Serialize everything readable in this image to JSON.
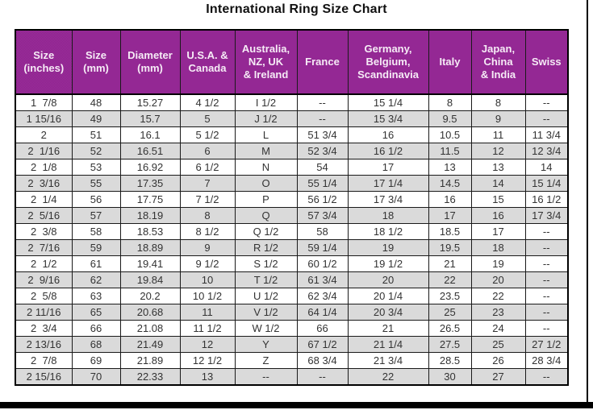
{
  "page": {
    "title": "International Ring Size Chart"
  },
  "colors": {
    "header_bg": "#8e1d8e",
    "header_text": "#f6ebf6",
    "row_alt_bg": "#d2d2d2",
    "text": "#333333",
    "border": "#000000"
  },
  "chart_data": {
    "type": "table",
    "title": "International Ring Size Chart",
    "columns": [
      "Size\n(inches)",
      "Size\n(mm)",
      "Diameter\n(mm)",
      "U.S.A. &\nCanada",
      "Australia,\nNZ, UK\n& Ireland",
      "France",
      "Germany,\nBelgium,\nScandinavia",
      "Italy",
      "Japan,\nChina\n& India",
      "Swiss"
    ],
    "rows": [
      [
        "1  7/8",
        "48",
        "15.27",
        "4 1/2",
        "I 1/2",
        "--",
        "15 1/4",
        "8",
        "8",
        "--"
      ],
      [
        "1 15/16",
        "49",
        "15.7",
        "5",
        "J 1/2",
        "--",
        "15 3/4",
        "9.5",
        "9",
        "--"
      ],
      [
        "2",
        "51",
        "16.1",
        "5 1/2",
        "L",
        "51 3/4",
        "16",
        "10.5",
        "11",
        "11 3/4"
      ],
      [
        "2  1/16",
        "52",
        "16.51",
        "6",
        "M",
        "52 3/4",
        "16 1/2",
        "11.5",
        "12",
        "12 3/4"
      ],
      [
        "2  1/8",
        "53",
        "16.92",
        "6 1/2",
        "N",
        "54",
        "17",
        "13",
        "13",
        "14"
      ],
      [
        "2  3/16",
        "55",
        "17.35",
        "7",
        "O",
        "55 1/4",
        "17 1/4",
        "14.5",
        "14",
        "15 1/4"
      ],
      [
        "2  1/4",
        "56",
        "17.75",
        "7 1/2",
        "P",
        "56 1/2",
        "17 3/4",
        "16",
        "15",
        "16 1/2"
      ],
      [
        "2  5/16",
        "57",
        "18.19",
        "8",
        "Q",
        "57 3/4",
        "18",
        "17",
        "16",
        "17 3/4"
      ],
      [
        "2  3/8",
        "58",
        "18.53",
        "8 1/2",
        "Q 1/2",
        "58",
        "18 1/2",
        "18.5",
        "17",
        "--"
      ],
      [
        "2  7/16",
        "59",
        "18.89",
        "9",
        "R 1/2",
        "59 1/4",
        "19",
        "19.5",
        "18",
        "--"
      ],
      [
        "2  1/2",
        "61",
        "19.41",
        "9 1/2",
        "S 1/2",
        "60 1/2",
        "19 1/2",
        "21",
        "19",
        "--"
      ],
      [
        "2  9/16",
        "62",
        "19.84",
        "10",
        "T 1/2",
        "61 3/4",
        "20",
        "22",
        "20",
        "--"
      ],
      [
        "2  5/8",
        "63",
        "20.2",
        "10 1/2",
        "U 1/2",
        "62 3/4",
        "20 1/4",
        "23.5",
        "22",
        "--"
      ],
      [
        "2 11/16",
        "65",
        "20.68",
        "11",
        "V 1/2",
        "64 1/4",
        "20 3/4",
        "25",
        "23",
        "--"
      ],
      [
        "2  3/4",
        "66",
        "21.08",
        "11 1/2",
        "W 1/2",
        "66",
        "21",
        "26.5",
        "24",
        "--"
      ],
      [
        "2 13/16",
        "68",
        "21.49",
        "12",
        "Y",
        "67 1/2",
        "21 1/4",
        "27.5",
        "25",
        "27 1/2"
      ],
      [
        "2  7/8",
        "69",
        "21.89",
        "12 1/2",
        "Z",
        "68 3/4",
        "21 3/4",
        "28.5",
        "26",
        "28 3/4"
      ],
      [
        "2 15/16",
        "70",
        "22.33",
        "13",
        "--",
        "--",
        "22",
        "30",
        "27",
        "--"
      ]
    ]
  }
}
